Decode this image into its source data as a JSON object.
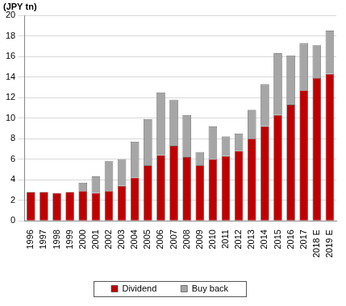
{
  "chart_data": {
    "type": "bar",
    "ylabel": "(JPY tn)",
    "categories": [
      "1996",
      "1997",
      "1998",
      "1999",
      "2000",
      "2001",
      "2002",
      "2003",
      "2004",
      "2005",
      "2006",
      "2007",
      "2008",
      "2009",
      "2010",
      "2011",
      "2012",
      "2013",
      "2014",
      "2015",
      "2016",
      "2017",
      "2018 E",
      "2019 E"
    ],
    "series": [
      {
        "name": "Dividend",
        "color": "#c00000",
        "values": [
          2.8,
          2.8,
          2.7,
          2.8,
          2.9,
          2.7,
          2.9,
          3.4,
          4.2,
          5.4,
          6.4,
          7.3,
          6.2,
          5.4,
          6.0,
          6.3,
          6.8,
          8.0,
          9.2,
          10.3,
          11.3,
          12.7,
          13.9,
          14.3
        ]
      },
      {
        "name": "Buy back",
        "color": "#a6a6a6",
        "values": [
          0,
          0,
          0,
          0,
          0.8,
          1.6,
          2.9,
          2.6,
          3.5,
          4.5,
          6.1,
          4.5,
          4.1,
          1.3,
          3.2,
          1.9,
          1.7,
          2.8,
          4.1,
          6.0,
          4.8,
          4.6,
          3.2,
          4.2
        ]
      }
    ],
    "stacked": true,
    "ylim": [
      0,
      20
    ],
    "yticks": [
      0,
      2,
      4,
      6,
      8,
      10,
      12,
      14,
      16,
      18,
      20
    ],
    "grid": true,
    "legend": "bottom"
  }
}
